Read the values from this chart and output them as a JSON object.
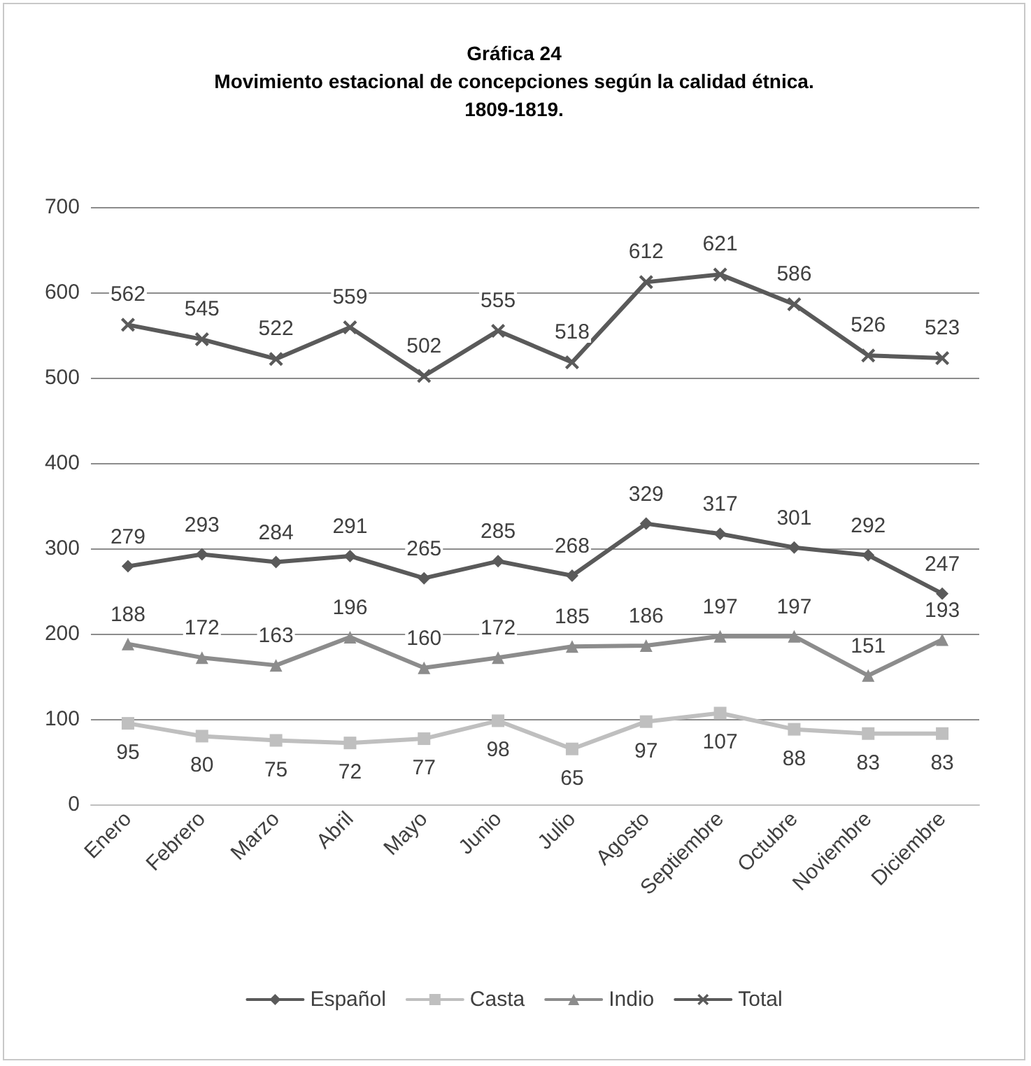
{
  "chart_data": {
    "type": "line",
    "title": "Gráfica 24\nMovimiento estacional de concepciones según la calidad étnica.\n1809-1819.",
    "categories": [
      "Enero",
      "Febrero",
      "Marzo",
      "Abril",
      "Mayo",
      "Junio",
      "Julio",
      "Agosto",
      "Septiembre",
      "Octubre",
      "Noviembre",
      "Diciembre"
    ],
    "series": [
      {
        "name": "Español",
        "color": "#5a5a5a",
        "marker": "diamond",
        "values": [
          279,
          293,
          284,
          291,
          265,
          285,
          268,
          329,
          317,
          301,
          292,
          247
        ]
      },
      {
        "name": "Casta",
        "color": "#bfbfbf",
        "marker": "square",
        "values": [
          95,
          80,
          75,
          72,
          77,
          98,
          65,
          97,
          107,
          88,
          83,
          83
        ]
      },
      {
        "name": "Indio",
        "color": "#8c8c8c",
        "marker": "triangle",
        "values": [
          188,
          172,
          163,
          196,
          160,
          172,
          185,
          186,
          197,
          197,
          151,
          193
        ]
      },
      {
        "name": "Total",
        "color": "#5a5a5a",
        "marker": "cross",
        "values": [
          562,
          545,
          522,
          559,
          502,
          555,
          518,
          612,
          621,
          586,
          526,
          523
        ]
      }
    ],
    "ylim": [
      0,
      700
    ],
    "yticks": [
      0,
      100,
      200,
      300,
      400,
      500,
      600,
      700
    ],
    "grid": "y",
    "legend": "bottom",
    "data_labels": true,
    "line_style": "solid"
  }
}
